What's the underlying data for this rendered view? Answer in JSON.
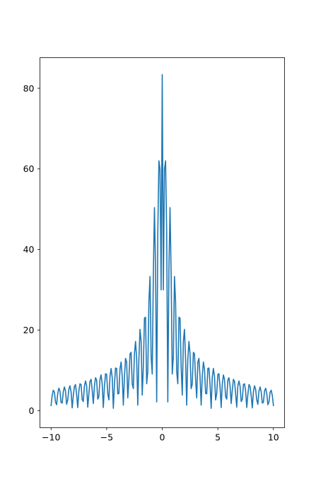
{
  "chart_data": {
    "type": "line",
    "title": "",
    "xlabel": "",
    "ylabel": "",
    "xlim": [
      -11.0,
      11.0
    ],
    "ylim": [
      -4.2,
      87.6
    ],
    "x_ticks": [
      -10,
      -5,
      0,
      5,
      10
    ],
    "x_tick_labels": [
      "−10",
      "−5",
      "0",
      "5",
      "10"
    ],
    "y_ticks": [
      0,
      20,
      40,
      60,
      80
    ],
    "y_tick_labels": [
      "0",
      "20",
      "40",
      "60",
      "80"
    ],
    "colors": {
      "line": "#1f77b4",
      "axes": "#000000",
      "background": "#ffffff"
    },
    "series": [
      {
        "name": "series-1",
        "x": [
          -10,
          -9.9,
          -9.8,
          -9.7,
          -9.6,
          -9.5,
          -9.4,
          -9.3,
          -9.2,
          -9.1,
          -9.0,
          -8.9,
          -8.8,
          -8.7,
          -8.6,
          -8.5,
          -8.4,
          -8.3,
          -8.2,
          -8.1,
          -8.0,
          -7.9,
          -7.8,
          -7.7,
          -7.6,
          -7.5,
          -7.4,
          -7.3,
          -7.2,
          -7.1,
          -7.0,
          -6.9,
          -6.8,
          -6.7,
          -6.6,
          -6.5,
          -6.4,
          -6.3,
          -6.2,
          -6.1,
          -6.0,
          -5.9,
          -5.8,
          -5.7,
          -5.6,
          -5.5,
          -5.4,
          -5.3,
          -5.2,
          -5.1,
          -5.0,
          -4.9,
          -4.8,
          -4.7,
          -4.6,
          -4.5,
          -4.4,
          -4.3,
          -4.2,
          -4.1,
          -4.0,
          -3.9,
          -3.8,
          -3.7,
          -3.6,
          -3.5,
          -3.4,
          -3.3,
          -3.2,
          -3.1,
          -3.0,
          -2.9,
          -2.8,
          -2.7,
          -2.6,
          -2.5,
          -2.4,
          -2.3,
          -2.2,
          -2.1,
          -2.0,
          -1.9,
          -1.8,
          -1.7,
          -1.6,
          -1.5,
          -1.4,
          -1.3,
          -1.2,
          -1.1,
          -1.0,
          -0.9,
          -0.8,
          -0.7,
          -0.6,
          -0.5,
          -0.4,
          -0.3,
          -0.2,
          -0.1,
          0.0,
          0.1,
          0.2,
          0.3,
          0.4,
          0.5,
          0.6,
          0.7,
          0.8,
          0.9,
          1.0,
          1.1,
          1.2,
          1.3,
          1.4,
          1.5,
          1.6,
          1.7,
          1.8,
          1.9,
          2.0,
          2.1,
          2.2,
          2.3,
          2.4,
          2.5,
          2.6,
          2.7,
          2.8,
          2.9,
          3.0,
          3.1,
          3.2,
          3.3,
          3.4,
          3.5,
          3.6,
          3.7,
          3.8,
          3.9,
          4.0,
          4.1,
          4.2,
          4.3,
          4.4,
          4.5,
          4.6,
          4.7,
          4.8,
          4.9,
          5.0,
          5.1,
          5.2,
          5.3,
          5.4,
          5.5,
          5.6,
          5.7,
          5.8,
          5.9,
          6.0,
          6.1,
          6.2,
          6.3,
          6.4,
          6.5,
          6.6,
          6.7,
          6.8,
          6.9,
          7.0,
          7.1,
          7.2,
          7.3,
          7.4,
          7.5,
          7.6,
          7.7,
          7.8,
          7.9,
          8.0,
          8.1,
          8.2,
          8.3,
          8.4,
          8.5,
          8.6,
          8.7,
          8.8,
          8.9,
          9.0,
          9.1,
          9.2,
          9.3,
          9.4,
          9.5,
          9.6,
          9.7,
          9.8,
          9.9,
          10.0
        ],
        "y": [
          1.3,
          3.8,
          5.1,
          4.6,
          2.2,
          1.5,
          4.3,
          5.6,
          4.9,
          2.1,
          1.9,
          4.7,
          5.9,
          4.9,
          1.6,
          2.7,
          5.3,
          6.2,
          4.7,
          0.7,
          3.7,
          6.0,
          6.5,
          4.0,
          0.8,
          4.9,
          6.7,
          6.5,
          2.8,
          2.3,
          6.1,
          7.4,
          6.2,
          0.9,
          4.2,
          7.3,
          7.8,
          5.1,
          1.8,
          6.1,
          8.2,
          7.6,
          2.9,
          3.5,
          7.8,
          8.9,
          6.6,
          0.8,
          6.0,
          9.2,
          9.0,
          4.3,
          2.7,
          8.5,
          10.5,
          8.3,
          0.6,
          6.5,
          10.6,
          10.5,
          4.2,
          4.3,
          10.4,
          12.1,
          8.6,
          1.4,
          8.4,
          13.0,
          12.1,
          3.2,
          7.8,
          14.1,
          14.5,
          6.6,
          5.5,
          14.2,
          17.2,
          12.8,
          1.4,
          12.8,
          20.2,
          17.2,
          3.9,
          11.0,
          23.0,
          23.2,
          6.7,
          9.7,
          27.0,
          33.3,
          13.5,
          9.1,
          34.0,
          50.4,
          35.0,
          2.2,
          44.0,
          62.0,
          60.0,
          30.0,
          83.4,
          30.0,
          60.0,
          62.0,
          44.0,
          2.2,
          35.0,
          50.4,
          34.0,
          9.1,
          13.5,
          33.3,
          27.0,
          9.7,
          6.7,
          23.2,
          23.0,
          11.0,
          3.9,
          17.2,
          20.2,
          12.8,
          1.4,
          12.8,
          17.2,
          14.2,
          5.5,
          6.6,
          14.5,
          14.1,
          7.8,
          3.2,
          12.1,
          13.0,
          8.4,
          1.4,
          8.6,
          12.1,
          10.4,
          4.3,
          4.2,
          10.5,
          10.6,
          6.5,
          0.6,
          8.3,
          10.5,
          8.5,
          2.7,
          4.3,
          9.0,
          9.2,
          6.0,
          0.8,
          6.6,
          8.9,
          7.8,
          3.5,
          2.9,
          7.6,
          8.2,
          6.1,
          1.8,
          5.1,
          7.8,
          7.3,
          4.2,
          0.9,
          6.2,
          7.4,
          6.1,
          2.3,
          2.8,
          6.5,
          6.7,
          4.9,
          0.8,
          4.0,
          6.5,
          6.0,
          3.7,
          0.7,
          4.7,
          6.2,
          5.3,
          2.7,
          1.6,
          4.9,
          5.9,
          4.7,
          1.9,
          2.1,
          4.9,
          5.6,
          4.3,
          1.5,
          2.2,
          4.6,
          5.1,
          3.8,
          1.3
        ]
      }
    ]
  }
}
